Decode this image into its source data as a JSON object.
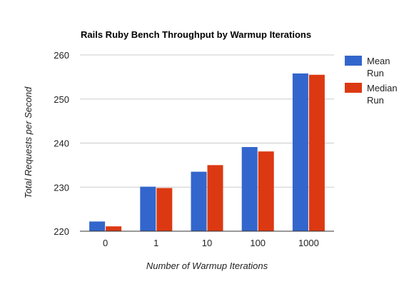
{
  "chart_data": {
    "type": "bar",
    "title": "Rails Ruby Bench Throughput by Warmup Iterations",
    "xlabel": "Number of Warmup Iterations",
    "ylabel": "Total Requests per Second",
    "categories": [
      "0",
      "1",
      "10",
      "100",
      "1000"
    ],
    "series": [
      {
        "name": "Mean Run",
        "color": "#3366cc",
        "values": [
          222.2,
          230.1,
          233.5,
          239.1,
          255.8
        ]
      },
      {
        "name": "Median Run",
        "color": "#dc3912",
        "values": [
          221.1,
          229.8,
          235.0,
          238.1,
          255.5
        ]
      }
    ],
    "ylim": [
      220,
      260
    ],
    "yticks": [
      "220",
      "230",
      "240",
      "250",
      "260"
    ],
    "grid": true,
    "legend_position": "right",
    "legend": [
      {
        "lines": [
          "Mean",
          "Run"
        ],
        "color": "#3366cc"
      },
      {
        "lines": [
          "Median",
          "Run"
        ],
        "color": "#dc3912"
      }
    ]
  }
}
